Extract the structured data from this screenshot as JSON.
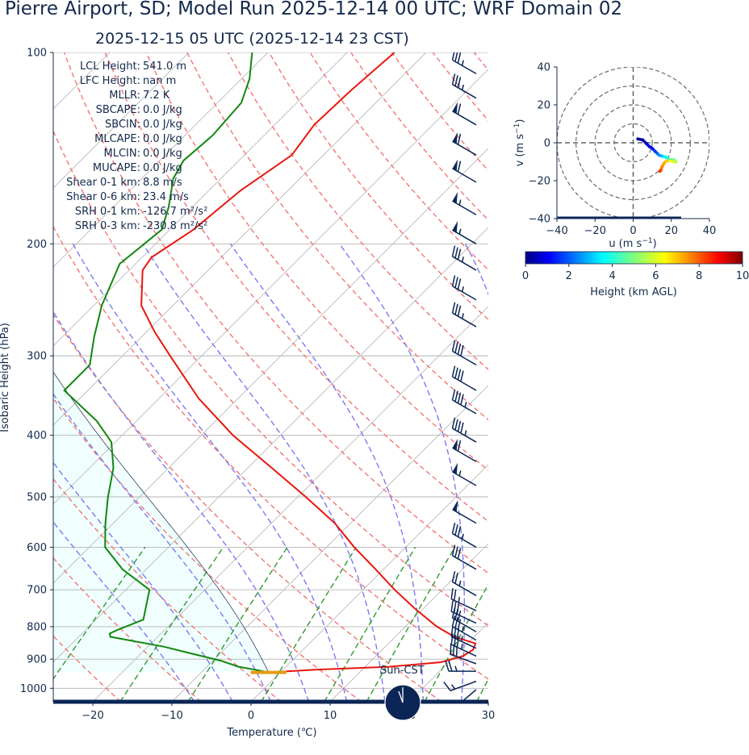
{
  "title": "Pierre Airport, SD; Model Run 2025-12-14 00 UTC; WRF Domain 02",
  "subtitle": "2025-12-15 05 UTC  (2025-12-14 23 CST)",
  "chart_data": [
    {
      "type": "line",
      "name": "skew-t",
      "xlabel": "Temperature (℃)",
      "ylabel": "Isobaric Height (hPa)",
      "xlim": [
        -25,
        30
      ],
      "ylim": [
        1050,
        100
      ],
      "yscale": "log",
      "skew": "45 degrees",
      "x_ticks": [
        -20,
        -10,
        0,
        10,
        20,
        30
      ],
      "y_ticks": [
        100,
        200,
        300,
        400,
        500,
        600,
        700,
        800,
        900,
        1000
      ],
      "series": [
        {
          "role": "temperature",
          "color": "#e8170e",
          "points": [
            {
              "p": 944,
              "t": -1.5
            },
            {
              "p": 935,
              "t": 4
            },
            {
              "p": 925,
              "t": 13
            },
            {
              "p": 910,
              "t": 19
            },
            {
              "p": 890,
              "t": 21
            },
            {
              "p": 870,
              "t": 21.5
            },
            {
              "p": 850,
              "t": 21
            },
            {
              "p": 830,
              "t": 17.5
            },
            {
              "p": 800,
              "t": 14
            },
            {
              "p": 750,
              "t": 9
            },
            {
              "p": 700,
              "t": 4
            },
            {
              "p": 650,
              "t": -1
            },
            {
              "p": 600,
              "t": -6.5
            },
            {
              "p": 550,
              "t": -12
            },
            {
              "p": 500,
              "t": -19
            },
            {
              "p": 450,
              "t": -27
            },
            {
              "p": 400,
              "t": -36
            },
            {
              "p": 350,
              "t": -45
            },
            {
              "p": 300,
              "t": -54
            },
            {
              "p": 275,
              "t": -59
            },
            {
              "p": 250,
              "t": -64
            },
            {
              "p": 220,
              "t": -68.3
            },
            {
              "p": 210,
              "t": -68.8
            },
            {
              "p": 190,
              "t": -67
            },
            {
              "p": 165,
              "t": -66
            },
            {
              "p": 145,
              "t": -64
            },
            {
              "p": 130,
              "t": -65
            },
            {
              "p": 115,
              "t": -64.7
            },
            {
              "p": 100,
              "t": -64
            }
          ]
        },
        {
          "role": "dewpoint",
          "color": "#12870f",
          "points": [
            {
              "p": 944,
              "t": -1.5
            },
            {
              "p": 935,
              "t": -3.5
            },
            {
              "p": 925,
              "t": -6
            },
            {
              "p": 905,
              "t": -9
            },
            {
              "p": 880,
              "t": -14
            },
            {
              "p": 860,
              "t": -18
            },
            {
              "p": 830,
              "t": -26
            },
            {
              "p": 820,
              "t": -26.5
            },
            {
              "p": 810,
              "t": -26
            },
            {
              "p": 780,
              "t": -24
            },
            {
              "p": 700,
              "t": -27
            },
            {
              "p": 650,
              "t": -33
            },
            {
              "p": 600,
              "t": -38
            },
            {
              "p": 550,
              "t": -41
            },
            {
              "p": 500,
              "t": -44
            },
            {
              "p": 450,
              "t": -47
            },
            {
              "p": 410,
              "t": -50.5
            },
            {
              "p": 380,
              "t": -55
            },
            {
              "p": 340,
              "t": -63
            },
            {
              "p": 310,
              "t": -63
            },
            {
              "p": 280,
              "t": -66
            },
            {
              "p": 250,
              "t": -69
            },
            {
              "p": 215,
              "t": -72
            },
            {
              "p": 190,
              "t": -71
            },
            {
              "p": 175,
              "t": -73
            },
            {
              "p": 158,
              "t": -76
            },
            {
              "p": 148,
              "t": -77
            },
            {
              "p": 135,
              "t": -76.5
            },
            {
              "p": 120,
              "t": -77
            },
            {
              "p": 110,
              "t": -79
            },
            {
              "p": 100,
              "t": -82
            }
          ]
        }
      ],
      "surface_pressure_hpa": 944,
      "sun_label": "Sun-CST",
      "parameters": [
        {
          "label": "LCL Height:",
          "value": "541.0 m"
        },
        {
          "label": "LFC Height:",
          "value": "nan m"
        },
        {
          "label": "MLLR:",
          "value": "7.2 K"
        },
        {
          "label": "SBCAPE:",
          "value": "0.0 J/kg"
        },
        {
          "label": "SBCIN:",
          "value": "0.0 J/kg"
        },
        {
          "label": "MLCAPE:",
          "value": "0.0 J/kg"
        },
        {
          "label": "MLCIN:",
          "value": "0.0 J/kg"
        },
        {
          "label": "MUCAPE:",
          "value": "0.0 J/kg"
        },
        {
          "label": "Shear 0-1 km:",
          "value": "8.8 m/s"
        },
        {
          "label": "Shear 0-6 km:",
          "value": "23.4 m/s"
        },
        {
          "label": "SRH 0-1 km:",
          "value": "-126.7 m²/s²"
        },
        {
          "label": "SRH 0-3 km:",
          "value": "-230.8 m²/s²"
        }
      ],
      "wind_barbs": [
        {
          "p": 1005,
          "speed_kt": 10,
          "dir": 230
        },
        {
          "p": 975,
          "speed_kt": 15,
          "dir": 250
        },
        {
          "p": 940,
          "speed_kt": 25,
          "dir": 270
        },
        {
          "p": 915,
          "speed_kt": 30,
          "dir": 290
        },
        {
          "p": 890,
          "speed_kt": 35,
          "dir": 295
        },
        {
          "p": 865,
          "speed_kt": 35,
          "dir": 295
        },
        {
          "p": 840,
          "speed_kt": 35,
          "dir": 300
        },
        {
          "p": 815,
          "speed_kt": 30,
          "dir": 300
        },
        {
          "p": 790,
          "speed_kt": 30,
          "dir": 295
        },
        {
          "p": 755,
          "speed_kt": 25,
          "dir": 295
        },
        {
          "p": 715,
          "speed_kt": 25,
          "dir": 300
        },
        {
          "p": 650,
          "speed_kt": 30,
          "dir": 300
        },
        {
          "p": 600,
          "speed_kt": 35,
          "dir": 300
        },
        {
          "p": 550,
          "speed_kt": 50,
          "dir": 300
        },
        {
          "p": 480,
          "speed_kt": 55,
          "dir": 300
        },
        {
          "p": 440,
          "speed_kt": 60,
          "dir": 300
        },
        {
          "p": 410,
          "speed_kt": 45,
          "dir": 300
        },
        {
          "p": 370,
          "speed_kt": 45,
          "dir": 300
        },
        {
          "p": 340,
          "speed_kt": 40,
          "dir": 300
        },
        {
          "p": 310,
          "speed_kt": 40,
          "dir": 300
        },
        {
          "p": 270,
          "speed_kt": 35,
          "dir": 300
        },
        {
          "p": 245,
          "speed_kt": 35,
          "dir": 300
        },
        {
          "p": 220,
          "speed_kt": 35,
          "dir": 300
        },
        {
          "p": 200,
          "speed_kt": 55,
          "dir": 300
        },
        {
          "p": 180,
          "speed_kt": 55,
          "dir": 300
        },
        {
          "p": 160,
          "speed_kt": 60,
          "dir": 300
        },
        {
          "p": 145,
          "speed_kt": 60,
          "dir": 300
        },
        {
          "p": 130,
          "speed_kt": 60,
          "dir": 300
        },
        {
          "p": 118,
          "speed_kt": 35,
          "dir": 300
        },
        {
          "p": 108,
          "speed_kt": 35,
          "dir": 300
        },
        {
          "p": 100,
          "speed_kt": 25,
          "dir": 300
        }
      ]
    },
    {
      "type": "scatter",
      "name": "hodograph",
      "xlabel": "u (m s$^{-1}$)",
      "ylabel": "v (m s$^{-1}$)",
      "xlim": [
        -40,
        40
      ],
      "ylim": [
        -40,
        40
      ],
      "ticks": [
        -40,
        -20,
        0,
        20,
        40
      ],
      "rings": [
        10,
        20,
        30,
        40
      ],
      "points": [
        {
          "u": 2.5,
          "v": 2,
          "h": 0.1
        },
        {
          "u": 5,
          "v": 1.5,
          "h": 0.3
        },
        {
          "u": 7,
          "v": -0.5,
          "h": 0.6
        },
        {
          "u": 8.5,
          "v": -2,
          "h": 0.9
        },
        {
          "u": 10,
          "v": -3,
          "h": 1.2
        },
        {
          "u": 11.5,
          "v": -4.5,
          "h": 1.6
        },
        {
          "u": 12.5,
          "v": -5.5,
          "h": 2.0
        },
        {
          "u": 13.5,
          "v": -6.5,
          "h": 2.5
        },
        {
          "u": 15,
          "v": -7,
          "h": 3.0
        },
        {
          "u": 17,
          "v": -7.5,
          "h": 3.5
        },
        {
          "u": 18.5,
          "v": -8.5,
          "h": 4.0
        },
        {
          "u": 20,
          "v": -9,
          "h": 4.5
        },
        {
          "u": 21.5,
          "v": -9,
          "h": 5.0
        },
        {
          "u": 22.5,
          "v": -10,
          "h": 5.5
        },
        {
          "u": 21.5,
          "v": -10,
          "h": 6.0
        },
        {
          "u": 19.5,
          "v": -9.5,
          "h": 6.4
        },
        {
          "u": 17.5,
          "v": -9.5,
          "h": 6.8
        },
        {
          "u": 16,
          "v": -11,
          "h": 7.2
        },
        {
          "u": 15,
          "v": -13,
          "h": 7.6
        },
        {
          "u": 14.5,
          "v": -14.5,
          "h": 8.0
        },
        {
          "u": 14,
          "v": -15,
          "h": 8.4
        }
      ]
    },
    {
      "type": "heatmap",
      "name": "colorbar",
      "label": "Height (km AGL)",
      "range": [
        0,
        10
      ],
      "ticks": [
        0,
        2,
        4,
        6,
        8,
        10
      ],
      "colormap": "jet"
    }
  ],
  "colors": {
    "axis": "#13294b",
    "dry_adiabat": "#f37575",
    "moist_adiabat": "#7a7af0",
    "mixing_ratio": "#2e9a2e",
    "isotherm": "#b9b9b9",
    "cape_fill": "#f0fffe",
    "surface_marker": "#e39b12"
  }
}
